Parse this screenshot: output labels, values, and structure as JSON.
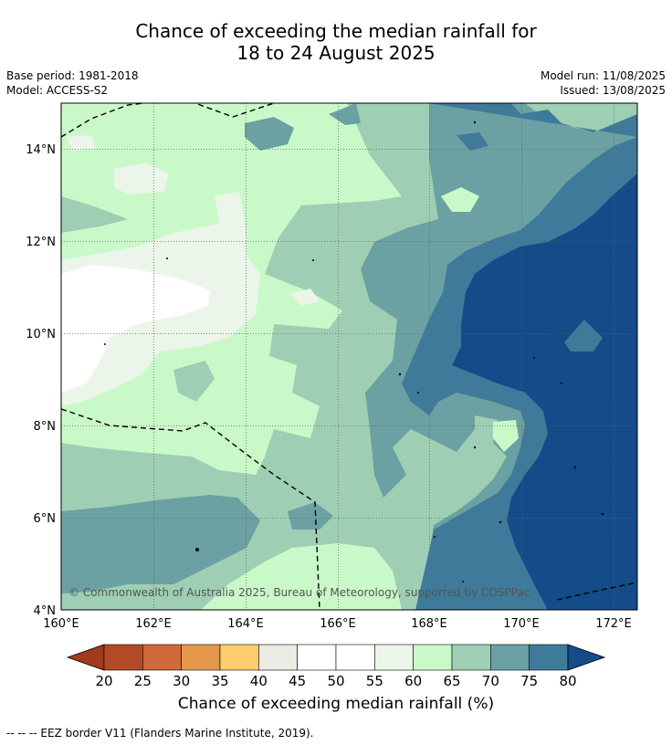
{
  "title_line1": "Chance of exceeding the median rainfall for",
  "title_line2": "18 to 24 August 2025",
  "meta": {
    "base_period": "Base period: 1981-2018",
    "model": "Model: ACCESS-S2",
    "model_run": "Model run: 11/08/2025",
    "issued": "Issued: 13/08/2025"
  },
  "map": {
    "lon_ticks": [
      "160°E",
      "162°E",
      "164°E",
      "166°E",
      "168°E",
      "170°E",
      "172°E"
    ],
    "lat_ticks": [
      "14°N",
      "12°N",
      "10°N",
      "8°N",
      "6°N",
      "4°N"
    ],
    "credit": "© Commonwealth of Australia 2025, Bureau of Meteorology, supported by COSPPac"
  },
  "colorbar": {
    "labels": [
      "20",
      "25",
      "30",
      "35",
      "40",
      "45",
      "50",
      "55",
      "60",
      "65",
      "70",
      "75",
      "80"
    ],
    "colors": [
      "#b24b25",
      "#d0693a",
      "#e4984c",
      "#fccd6a",
      "#ebeae3",
      "#ffffff",
      "#ffffff",
      "#ebf5e9",
      "#caf9c9",
      "#9ecfb4",
      "#6ba1a2",
      "#3f7a9a"
    ],
    "below_color": "#a23a1d",
    "above_color": "#134c88",
    "title": "Chance of exceeding median rainfall (%)"
  },
  "footnote": "--  --  -- EEZ border V11 (Flanders Marine Institute, 2019)."
}
